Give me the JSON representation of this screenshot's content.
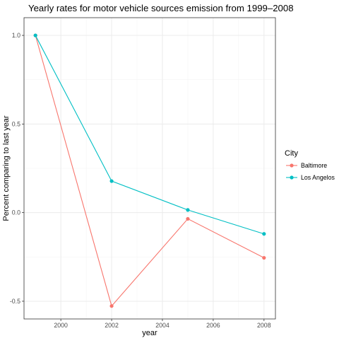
{
  "chart_data": {
    "type": "line",
    "title": "Yearly rates for motor vehicle sources emission from 1999–2008",
    "xlabel": "year",
    "ylabel": "Percent comparing to last year",
    "xlim": [
      1998.55,
      2008.45
    ],
    "ylim": [
      -0.6,
      1.1
    ],
    "x_ticks": [
      2000,
      2002,
      2004,
      2006,
      2008
    ],
    "x_tick_labels": [
      "2000",
      "2002",
      "2004",
      "2006",
      "2008"
    ],
    "y_ticks": [
      -0.5,
      0.0,
      0.5,
      1.0
    ],
    "y_tick_labels": [
      "-0.5",
      "0.0",
      "0.5",
      "1.0"
    ],
    "grid": true,
    "legend": {
      "title": "City",
      "placement": "right"
    },
    "x": [
      1999,
      2002,
      2005,
      2008
    ],
    "series": [
      {
        "name": "Baltimore",
        "color": "#F8766D",
        "values": [
          1.0,
          -0.527,
          -0.035,
          -0.255
        ]
      },
      {
        "name": "Los Angelos",
        "color": "#00BFC4",
        "values": [
          1.0,
          0.178,
          0.015,
          -0.12
        ]
      }
    ]
  }
}
